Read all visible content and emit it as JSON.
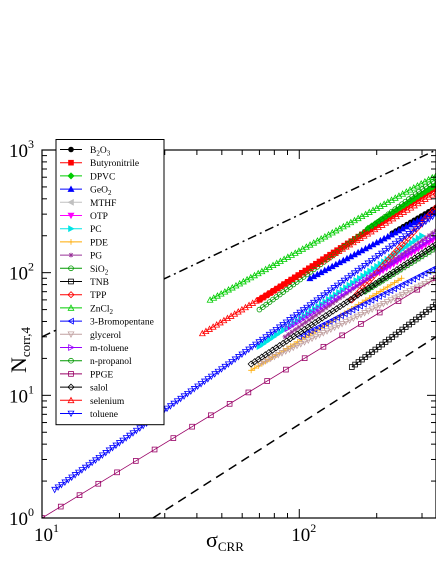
{
  "chart_data": {
    "type": "scatter",
    "title": "",
    "xlabel": "σ",
    "xlabel_sub": "CRR",
    "ylabel": "N",
    "ylabel_sub": "corr,4",
    "x_scale": "log",
    "y_scale": "log",
    "xlim": [
      10,
      340
    ],
    "ylim": [
      1,
      1000
    ],
    "x_tick_labels": [
      {
        "value": 10,
        "base": "10",
        "exp": "1"
      },
      {
        "value": 100,
        "base": "10",
        "exp": "2"
      }
    ],
    "y_tick_labels": [
      {
        "value": 1,
        "base": "10",
        "exp": "0"
      },
      {
        "value": 10,
        "base": "10",
        "exp": "1"
      },
      {
        "value": 100,
        "base": "10",
        "exp": "2"
      },
      {
        "value": 1000,
        "base": "10",
        "exp": "3"
      }
    ],
    "grid": false,
    "legend_position": "top-left",
    "reference_lines": [
      {
        "style": "dash-dot",
        "x": [
          10,
          340
        ],
        "y": [
          30,
          1000
        ]
      },
      {
        "style": "dashed",
        "x": [
          27,
          340
        ],
        "y": [
          1,
          30
        ]
      }
    ],
    "series": [
      {
        "name": "B2O3",
        "label_base": "B",
        "label_sub": "2",
        "label_rest": "O",
        "label_sub2": "3",
        "color": "#000000",
        "marker": "circle",
        "fill": true,
        "x_range": [
          230,
          340
        ],
        "y_range": [
          210,
          340
        ]
      },
      {
        "name": "Butyronitrile",
        "color": "#ff0000",
        "marker": "square",
        "fill": true,
        "x_range": [
          70,
          340
        ],
        "y_range": [
          60,
          500
        ]
      },
      {
        "name": "DPVC",
        "color": "#00cc00",
        "marker": "diamond",
        "fill": true,
        "x_range": [
          185,
          340
        ],
        "y_range": [
          230,
          520
        ]
      },
      {
        "name": "GeO2",
        "label_base": "GeO",
        "label_sub": "2",
        "color": "#0000ff",
        "marker": "triangle-up",
        "fill": true,
        "x_range": [
          110,
          340
        ],
        "y_range": [
          90,
          320
        ]
      },
      {
        "name": "MTHF",
        "color": "#c0c0c0",
        "marker": "triangle-left",
        "fill": true,
        "x_range": [
          155,
          340
        ],
        "y_range": [
          60,
          160
        ]
      },
      {
        "name": "OTP",
        "color": "#ff00ff",
        "marker": "triangle-down",
        "fill": true,
        "x_range": [
          205,
          340
        ],
        "y_range": [
          100,
          190
        ]
      },
      {
        "name": "PC",
        "color": "#00e5e5",
        "marker": "triangle-right",
        "fill": true,
        "x_range": [
          70,
          300
        ],
        "y_range": [
          25,
          200
        ]
      },
      {
        "name": "PDE",
        "color": "#ffaa00",
        "marker": "plus",
        "fill": false,
        "x_range": [
          65,
          250
        ],
        "y_range": [
          16,
          90
        ]
      },
      {
        "name": "PG",
        "color": "#993399",
        "marker": "star",
        "fill": false,
        "x_range": [
          88,
          340
        ],
        "y_range": [
          30,
          220
        ]
      },
      {
        "name": "SiO2",
        "label_base": "SiO",
        "label_sub": "2",
        "color": "#009900",
        "marker": "circle",
        "fill": false,
        "x_range": [
          70,
          340
        ],
        "y_range": [
          50,
          580
        ]
      },
      {
        "name": "TNB",
        "color": "#000000",
        "marker": "square",
        "fill": false,
        "x_range": [
          160,
          340
        ],
        "y_range": [
          17,
          55
        ]
      },
      {
        "name": "TPP",
        "color": "#ff0000",
        "marker": "diamond",
        "fill": false,
        "x_range": [
          160,
          340
        ],
        "y_range": [
          60,
          340
        ]
      },
      {
        "name": "ZnCl2",
        "label_base": "ZnCl",
        "label_sub": "2",
        "color": "#00cc00",
        "marker": "triangle-up",
        "fill": false,
        "x_range": [
          45,
          340
        ],
        "y_range": [
          60,
          620
        ]
      },
      {
        "name": "3-Bromopentane",
        "color": "#0000ff",
        "marker": "triangle-left",
        "fill": false,
        "x_range": [
          100,
          340
        ],
        "y_range": [
          30,
          110
        ]
      },
      {
        "name": "glycerol",
        "color": "#c0a0a0",
        "marker": "triangle-down",
        "fill": false,
        "x_range": [
          70,
          340
        ],
        "y_range": [
          18,
          90
        ]
      },
      {
        "name": "m-toluene",
        "color": "#9900ff",
        "marker": "triangle-right",
        "fill": false,
        "x_range": [
          90,
          340
        ],
        "y_range": [
          35,
          200
        ]
      },
      {
        "name": "n-propanol",
        "color": "#009900",
        "marker": "circle",
        "fill": false,
        "x_range": [
          180,
          340
        ],
        "y_range": [
          70,
          160
        ]
      },
      {
        "name": "PPGE",
        "color": "#990066",
        "marker": "square",
        "fill": false,
        "x_range": [
          10,
          340
        ],
        "y_range": [
          1,
          90
        ]
      },
      {
        "name": "salol",
        "color": "#000000",
        "marker": "diamond",
        "fill": false,
        "x_range": [
          65,
          340
        ],
        "y_range": [
          18,
          170
        ]
      },
      {
        "name": "selenium",
        "color": "#ff0000",
        "marker": "triangle-up",
        "fill": false,
        "x_range": [
          42,
          340
        ],
        "y_range": [
          32,
          450
        ]
      },
      {
        "name": "toluene",
        "color": "#0000ff",
        "marker": "triangle-down",
        "fill": false,
        "x_range": [
          11.2,
          340
        ],
        "y_range": [
          1.7,
          300
        ]
      }
    ]
  }
}
